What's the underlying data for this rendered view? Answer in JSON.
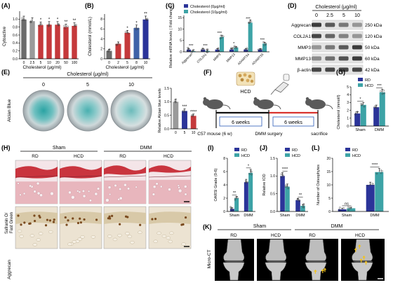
{
  "colors": {
    "navy": "#2b3499",
    "teal": "#3da3a6",
    "red": "#c5393b",
    "gray": "#9a9a9a",
    "gray_dark": "#6b6b6b",
    "blue_mid": "#3f62a8",
    "safranin_red": "#c9343e",
    "tissue_pink": "#e8b6bd",
    "aggrecan_bg": "#d9cbb4",
    "alcian_teal": "#3aa9a8"
  },
  "panels": {
    "A": {
      "label": "(A)",
      "ylabel": "Cytoactive",
      "xlabel": "Cholesterol (μg/ml)",
      "yticks": [
        "0.0",
        "0.2",
        "0.4",
        "0.6",
        "0.8",
        "1.0"
      ],
      "sig": [
        "",
        "",
        "*",
        "*",
        "*",
        "**",
        "**"
      ]
    },
    "B": {
      "label": "(B)",
      "ylabel": "Cholesterol (mmol/L)",
      "xlabel": "Cholesterol (μg/ml)",
      "yticks": [
        "0",
        "2",
        "4",
        "6",
        "8"
      ],
      "sig": [
        "",
        "",
        "*",
        "*",
        "**"
      ]
    },
    "C": {
      "label": "(C)",
      "ylabel": "Relative mRNA levels\n( Fold change)",
      "legend": [
        "Cholesterol (0μg/ml)",
        "Cholesterol (10μg/ml)"
      ],
      "yticks": [
        "0",
        "5",
        "10",
        "15"
      ],
      "sig": [
        "***",
        "***",
        "***",
        "*",
        "***",
        "***"
      ]
    },
    "D": {
      "label": "(D)",
      "header": "Cholesterol (μg/ml)",
      "conc": [
        "0",
        "2.5",
        "5",
        "10"
      ],
      "rows": [
        {
          "protein": "Aggrecan",
          "size": "250 kDa"
        },
        {
          "protein": "COL2A1",
          "size": "120 kDa"
        },
        {
          "protein": "MMP3",
          "size": "50 kDa"
        },
        {
          "protein": "MMP13",
          "size": "60 kDa"
        },
        {
          "protein": "β-actin",
          "size": "42 kDa"
        }
      ]
    },
    "E": {
      "label": "(E)",
      "header": "Cholesterol (μg/ml)",
      "stain": "Alcian Blue",
      "conc": [
        "0",
        "5",
        "10"
      ],
      "ylabel": "Relative Alcian blue levels",
      "yticks": [
        "0.0",
        "0.5",
        "1.0",
        "1.5"
      ],
      "sig": [
        "",
        "***",
        "****"
      ]
    },
    "F": {
      "label": "(F)",
      "food": "HCD",
      "period1": "6 weeks",
      "period2": "6 weeks",
      "mouse": "C57 mouse (6 w)",
      "surgery": "DMM surgery",
      "end": "sacrifice"
    },
    "G": {
      "label": "(G)",
      "ylabel": "Cholesterol (mmol/l)",
      "legend": [
        "RD",
        "HCD"
      ],
      "groups": [
        "Sham",
        "DMM"
      ],
      "yticks": [
        "0",
        "1",
        "2",
        "3",
        "4",
        "5"
      ],
      "sig": [
        "*",
        "***"
      ]
    },
    "H": {
      "label": "(H)",
      "top_groups": [
        "Sham",
        "DMM"
      ],
      "cols": [
        "RD",
        "HCD",
        "RD",
        "HCD"
      ],
      "row_labels": [
        "Safranin O/\nFast Green",
        "Aggrecan"
      ]
    },
    "I": {
      "label": "(I)",
      "ylabel": "OARSI Grade (0-6)",
      "legend": [
        "RD",
        "HCD"
      ],
      "groups": [
        "Sham",
        "DMM"
      ],
      "yticks": [
        "0",
        "2",
        "4",
        "6",
        "8"
      ],
      "sig": [
        "**",
        "*"
      ]
    },
    "J": {
      "label": "(J)",
      "ylabel": "Relative IOD",
      "legend": [
        "RD",
        "HCD"
      ],
      "groups": [
        "Sham",
        "DMM"
      ],
      "yticks": [
        "0.0",
        "0.5",
        "1.0",
        "1.5"
      ],
      "sig": [
        "****",
        "**"
      ]
    },
    "L": {
      "label": "(L)",
      "ylabel": "Number of Osteophytes",
      "legend": [
        "RD",
        "HCD"
      ],
      "groups": [
        "Sham",
        "DMM"
      ],
      "yticks": [
        "0",
        "5",
        "10",
        "15",
        "20"
      ],
      "sig": [
        "ns",
        "****"
      ]
    },
    "K": {
      "label": "(K)",
      "top_groups": [
        "Sham",
        "DMM"
      ],
      "cols": [
        "RD",
        "HCD",
        "RD",
        "HCD"
      ],
      "row_label": "Micro-CT"
    }
  },
  "chart_data": [
    {
      "panel": "A",
      "type": "bar",
      "categories": [
        "0",
        "2.5",
        "5",
        "10",
        "20",
        "50",
        "100"
      ],
      "values": [
        0.99,
        0.95,
        0.85,
        0.86,
        0.86,
        0.8,
        0.83
      ],
      "ylim": [
        0,
        1.2
      ]
    },
    {
      "panel": "B",
      "type": "bar",
      "categories": [
        "0",
        "2",
        "5",
        "8",
        "10"
      ],
      "values": [
        1.6,
        3.0,
        5.2,
        6.2,
        7.9
      ],
      "ylim": [
        0,
        9
      ]
    },
    {
      "panel": "C",
      "type": "bar",
      "categories": [
        "Aggrecan",
        "COL2A1",
        "MMP3",
        "MMP13",
        "ADAMTS4",
        "ADAMTS5"
      ],
      "series": [
        {
          "name": "Cholesterol (0μg/ml)",
          "values": [
            1,
            1,
            1,
            1,
            1,
            1
          ]
        },
        {
          "name": "Cholesterol (10μg/ml)",
          "values": [
            0.3,
            0.4,
            6.5,
            1.9,
            12.8,
            3.6
          ]
        }
      ],
      "ylim": [
        0,
        16
      ]
    },
    {
      "panel": "E",
      "type": "bar",
      "categories": [
        "0",
        "5",
        "10"
      ],
      "values": [
        1.0,
        0.66,
        0.48
      ],
      "ylim": [
        0,
        1.5
      ]
    },
    {
      "panel": "G",
      "type": "bar",
      "categories": [
        "Sham",
        "DMM"
      ],
      "series": [
        {
          "name": "RD",
          "values": [
            1.6,
            2.4
          ]
        },
        {
          "name": "HCD",
          "values": [
            2.7,
            4.3
          ]
        }
      ],
      "ylim": [
        0,
        5
      ]
    },
    {
      "panel": "I",
      "type": "bar",
      "categories": [
        "Sham",
        "DMM"
      ],
      "series": [
        {
          "name": "RD",
          "values": [
            0.4,
            4.4
          ]
        },
        {
          "name": "HCD",
          "values": [
            2.0,
            5.8
          ]
        }
      ],
      "ylim": [
        0,
        8
      ]
    },
    {
      "panel": "J",
      "type": "bar",
      "categories": [
        "Sham",
        "DMM"
      ],
      "series": [
        {
          "name": "RD",
          "values": [
            1.0,
            0.32
          ]
        },
        {
          "name": "HCD",
          "values": [
            0.7,
            0.16
          ]
        }
      ],
      "ylim": [
        0,
        1.5
      ]
    },
    {
      "panel": "L",
      "type": "bar",
      "categories": [
        "Sham",
        "DMM"
      ],
      "series": [
        {
          "name": "RD",
          "values": [
            0.8,
            10.0
          ]
        },
        {
          "name": "HCD",
          "values": [
            1.2,
            14.8
          ]
        }
      ],
      "ylim": [
        0,
        20
      ]
    }
  ]
}
